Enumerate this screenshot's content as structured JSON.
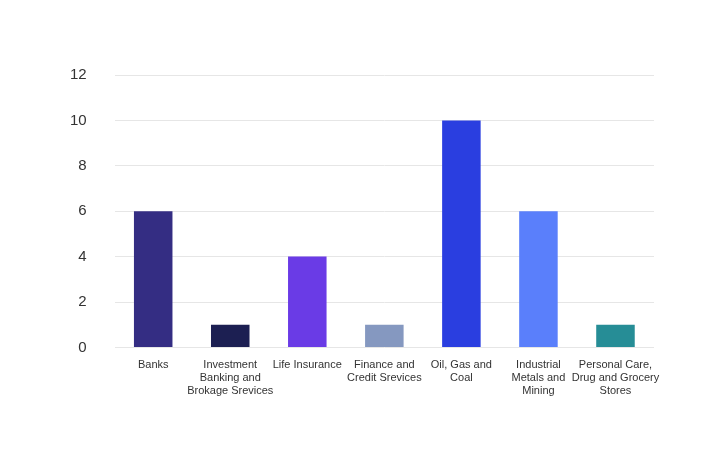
{
  "chart_data": {
    "type": "bar",
    "categories": [
      "Banks",
      "Investment Banking and Brokage Srevices",
      "Life Insurance",
      "Finance and Credit Srevices",
      "Oil, Gas and Coal",
      "Industrial Metals and Mining",
      "Personal Care, Drug and Grocery Stores"
    ],
    "values": [
      6,
      1,
      4,
      1,
      10,
      6,
      1
    ],
    "colors": [
      "#342d83",
      "#1c1f52",
      "#6a3be6",
      "#8598c0",
      "#2a3ee0",
      "#5a7ffb",
      "#268d96"
    ],
    "ylim": [
      0,
      12
    ],
    "yticks": [
      0,
      2,
      4,
      6,
      8,
      10,
      12
    ],
    "grid": true
  }
}
